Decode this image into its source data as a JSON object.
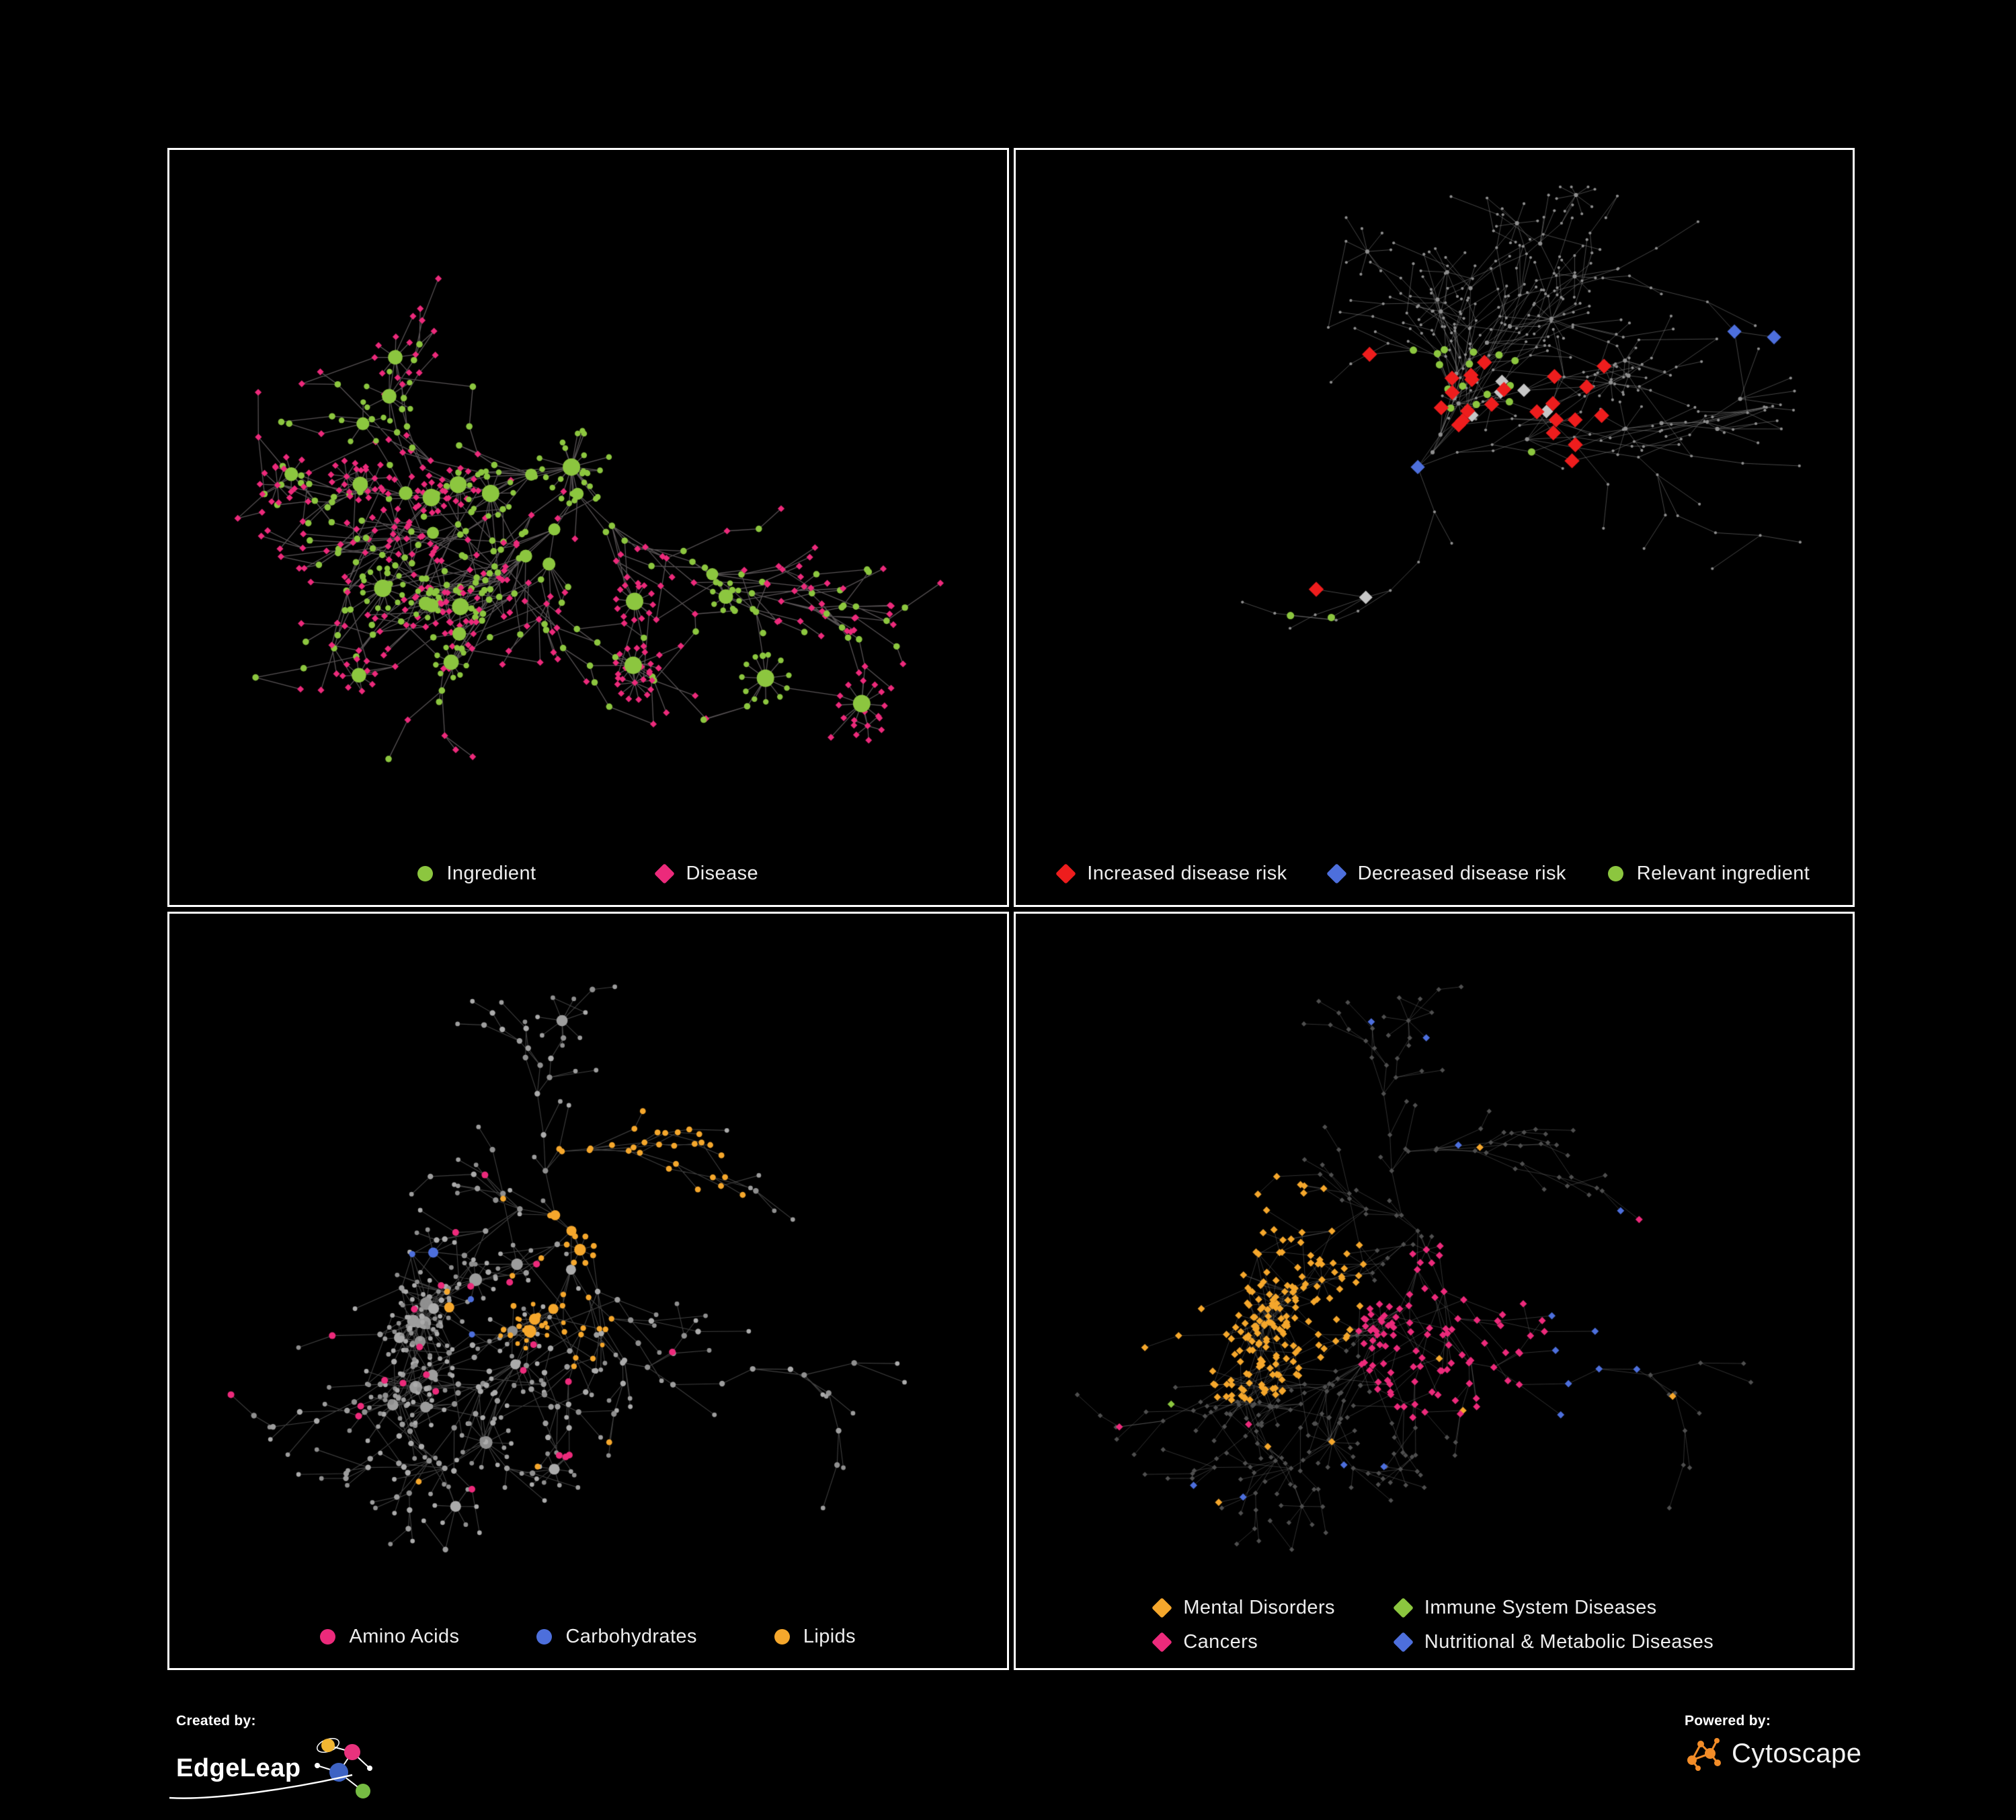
{
  "panels": [
    {
      "name": "ingredient-disease-network",
      "legend": [
        {
          "label": "Ingredient",
          "shape": "circle",
          "color": "#8CC63F"
        },
        {
          "label": "Disease",
          "shape": "diamond",
          "color": "#EC2A7B"
        }
      ]
    },
    {
      "name": "disease-risk-network",
      "legend": [
        {
          "label": "Increased disease risk",
          "shape": "diamond",
          "color": "#EE1D1D"
        },
        {
          "label": "Decreased disease risk",
          "shape": "diamond",
          "color": "#4D6FDC"
        },
        {
          "label": "Relevant ingredient",
          "shape": "circle",
          "color": "#8CC63F"
        }
      ]
    },
    {
      "name": "macronutrient-network",
      "legend": [
        {
          "label": "Amino Acids",
          "shape": "circle",
          "color": "#EC2A7B"
        },
        {
          "label": "Carbohydrates",
          "shape": "circle",
          "color": "#4D6FDC"
        },
        {
          "label": "Lipids",
          "shape": "circle",
          "color": "#F5A72C"
        }
      ]
    },
    {
      "name": "disease-category-network",
      "legend": [
        {
          "label": "Mental Disorders",
          "shape": "diamond",
          "color": "#F5A72C"
        },
        {
          "label": "Immune System Diseases",
          "shape": "diamond",
          "color": "#8CC63F"
        },
        {
          "label": "Cancers",
          "shape": "diamond",
          "color": "#EC2A7B"
        },
        {
          "label": "Nutritional & Metabolic Diseases",
          "shape": "diamond",
          "color": "#4D6FDC"
        }
      ]
    }
  ],
  "footer": {
    "created_by": "Created by:",
    "brand": "EdgeLeap",
    "powered_by": "Powered by:",
    "engine": "Cytoscape"
  },
  "style": {
    "background": "#000000",
    "edge_color": "#8A8A8A",
    "base_node_gray": "#A6A6A6",
    "dim_node_gray": "#4F4F4F"
  }
}
